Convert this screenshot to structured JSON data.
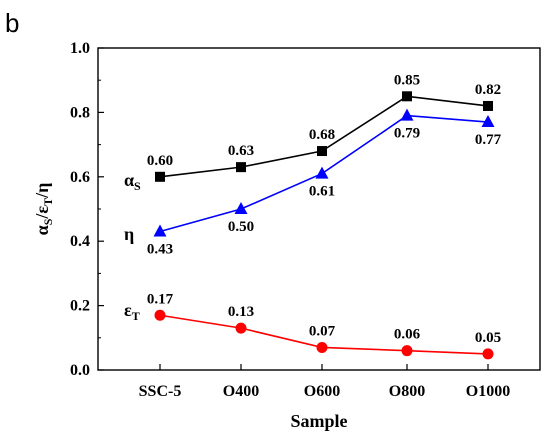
{
  "chart_data": {
    "type": "line",
    "panel_label": "b",
    "xlabel": "Sample",
    "ylabel_parts": {
      "a": "α",
      "a_sub": "S",
      "sep1": "/ε",
      "e_sub": "T",
      "sep2": "/η"
    },
    "categories": [
      "SSC-5",
      "O400",
      "O600",
      "O800",
      "O1000"
    ],
    "ylim": [
      0.0,
      1.0
    ],
    "yticks": [
      "0.0",
      "0.2",
      "0.4",
      "0.6",
      "0.8",
      "1.0"
    ],
    "grid": false,
    "series": [
      {
        "key": "alpha",
        "label_main": "α",
        "label_sub": "S",
        "color": "#000000",
        "marker": "square",
        "values": [
          0.6,
          0.63,
          0.68,
          0.85,
          0.82
        ],
        "labels": [
          "0.60",
          "0.63",
          "0.68",
          "0.85",
          "0.82"
        ],
        "label_pos": [
          "above",
          "above",
          "above",
          "above",
          "above"
        ]
      },
      {
        "key": "eta",
        "label_main": "η",
        "label_sub": "",
        "color": "#0000ff",
        "marker": "triangle",
        "values": [
          0.43,
          0.5,
          0.61,
          0.79,
          0.77
        ],
        "labels": [
          "0.43",
          "0.50",
          "0.61",
          "0.79",
          "0.77"
        ],
        "label_pos": [
          "below",
          "below",
          "below",
          "below",
          "below"
        ]
      },
      {
        "key": "epsilon",
        "label_main": "ε",
        "label_sub": "T",
        "color": "#ff0000",
        "marker": "circle",
        "values": [
          0.17,
          0.13,
          0.07,
          0.06,
          0.05
        ],
        "labels": [
          "0.17",
          "0.13",
          "0.07",
          "0.06",
          "0.05"
        ],
        "label_pos": [
          "above",
          "above",
          "above",
          "above",
          "above"
        ]
      }
    ]
  }
}
